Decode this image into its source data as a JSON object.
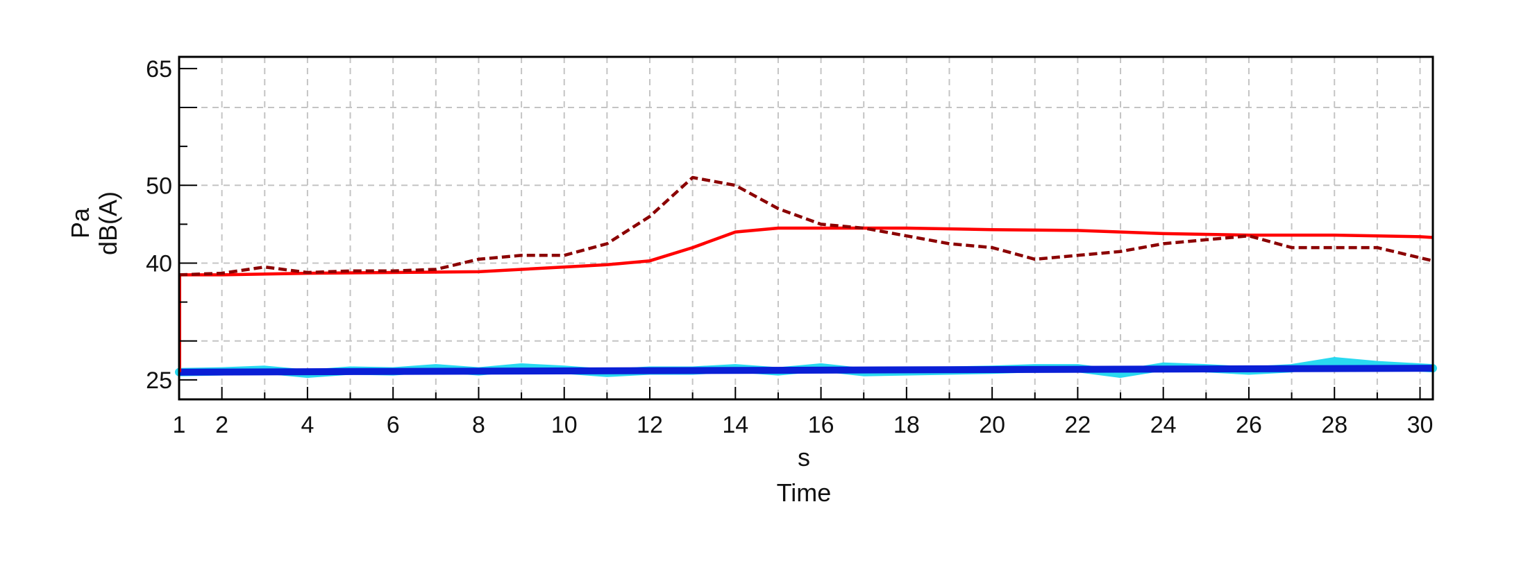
{
  "chart_data": {
    "type": "line",
    "title": "",
    "xlabel": "Time",
    "xunit": "s",
    "ylabel_lines": [
      "Pa",
      "dB(A)"
    ],
    "xlim": [
      1,
      30.3
    ],
    "ylim": [
      22.5,
      66.5
    ],
    "x_ticks": [
      1,
      2,
      4,
      6,
      8,
      10,
      12,
      14,
      16,
      18,
      20,
      22,
      24,
      26,
      28,
      30
    ],
    "y_tick_labels": [
      25,
      40,
      50,
      65
    ],
    "y_major_ticks": [
      25,
      30,
      40,
      50,
      60,
      65
    ],
    "x_grid": [
      2,
      3,
      4,
      5,
      6,
      7,
      8,
      9,
      10,
      11,
      12,
      13,
      14,
      15,
      16,
      17,
      18,
      19,
      20,
      21,
      22,
      23,
      24,
      25,
      26,
      27,
      28,
      29,
      30
    ],
    "y_grid": [
      30,
      40,
      50,
      60
    ],
    "grid": true,
    "series": [
      {
        "color": "#8b0000",
        "style": "dashed",
        "x": [
          1,
          2,
          3,
          4,
          5,
          6,
          7,
          8,
          9,
          10,
          11,
          12,
          13,
          14,
          15,
          16,
          17,
          18,
          19,
          20,
          21,
          22,
          23,
          24,
          25,
          26,
          27,
          28,
          29,
          30.3
        ],
        "y": [
          38.5,
          38.7,
          39.5,
          38.8,
          39.0,
          39.0,
          39.2,
          40.5,
          41.0,
          41.0,
          42.5,
          46.0,
          51.0,
          50.0,
          47.0,
          45.0,
          44.5,
          43.5,
          42.5,
          42.0,
          40.5,
          41.0,
          41.5,
          42.5,
          43.0,
          43.5,
          42.0,
          42.0,
          42.0,
          40.3
        ]
      },
      {
        "color": "#ff0000",
        "style": "solid",
        "x": [
          1,
          2,
          4,
          6,
          8,
          10,
          11,
          12,
          13,
          14,
          15,
          16,
          18,
          20,
          22,
          24,
          26,
          28,
          30,
          30.3
        ],
        "y": [
          38.5,
          38.5,
          38.7,
          38.8,
          38.9,
          39.5,
          39.8,
          40.3,
          42.0,
          44.0,
          44.5,
          44.5,
          44.5,
          44.3,
          44.2,
          43.8,
          43.6,
          43.6,
          43.4,
          43.3
        ]
      },
      {
        "color": "#29d9f0",
        "style": "band",
        "x": [
          1,
          2,
          3,
          4,
          5,
          6,
          7,
          8,
          9,
          10,
          11,
          12,
          13,
          14,
          15,
          16,
          17,
          18,
          19,
          20,
          21,
          22,
          23,
          24,
          25,
          26,
          27,
          28,
          29,
          30.3
        ],
        "y": [
          26.0,
          26.1,
          26.3,
          25.8,
          26.2,
          26.1,
          26.5,
          26.1,
          26.6,
          26.3,
          25.9,
          26.2,
          26.2,
          26.5,
          26.1,
          26.6,
          26.0,
          26.1,
          26.2,
          26.3,
          26.5,
          26.5,
          25.8,
          26.7,
          26.5,
          26.2,
          26.5,
          27.4,
          26.9,
          26.5
        ]
      },
      {
        "color": "#0a1fd6",
        "style": "band",
        "x": [
          1,
          30.3
        ],
        "y": [
          26.0,
          26.5
        ]
      }
    ]
  }
}
